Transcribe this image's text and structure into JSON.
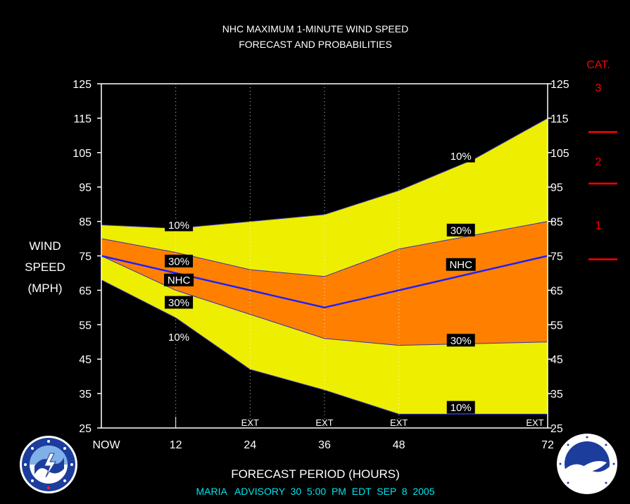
{
  "chart_data": {
    "type": "area",
    "title": [
      "NHC MAXIMUM 1-MINUTE WIND SPEED",
      "FORECAST AND PROBABILITIES"
    ],
    "xlabel": "FORECAST PERIOD (HOURS)",
    "ylabel": [
      "WIND",
      "SPEED",
      "(MPH)"
    ],
    "x_ticks": [
      {
        "x": 0,
        "label": "NOW"
      },
      {
        "x": 12,
        "label": "12"
      },
      {
        "x": 24,
        "label": "24"
      },
      {
        "x": 36,
        "label": "36"
      },
      {
        "x": 48,
        "label": "48"
      },
      {
        "x": 72,
        "label": "72"
      }
    ],
    "x_range": [
      0,
      72
    ],
    "ylim": [
      25,
      125
    ],
    "y_ticks": [
      25,
      35,
      45,
      55,
      65,
      75,
      85,
      95,
      105,
      115,
      125
    ],
    "x": [
      0,
      12,
      24,
      36,
      48,
      60,
      72
    ],
    "bands": {
      "upper_10": [
        84,
        83,
        85,
        87,
        94,
        103,
        115
      ],
      "upper_30": [
        80,
        76,
        71,
        69,
        77,
        81,
        85
      ],
      "nhc": [
        75,
        70,
        65,
        60,
        65,
        70,
        75
      ],
      "lower_30": [
        75,
        65,
        58,
        51,
        49,
        49.5,
        50
      ],
      "lower_10": [
        68,
        57,
        42,
        36,
        29,
        29,
        29
      ]
    },
    "colors": {
      "outer_band": "#eeee00",
      "inner_band": "#ff8000",
      "nhc_line": "#2020ff",
      "category_marks": "#ff0000",
      "footer_text": "#00e5ee"
    },
    "band_labels": [
      {
        "text": "10%",
        "x": 12.5,
        "y": 84
      },
      {
        "text": "30%",
        "x": 12.5,
        "y": 73.5
      },
      {
        "text": "NHC",
        "x": 12.5,
        "y": 68
      },
      {
        "text": "30%",
        "x": 12.5,
        "y": 61.5
      },
      {
        "text": "10%",
        "x": 12.5,
        "y": 51.5
      },
      {
        "text": "10%",
        "x": 58,
        "y": 104
      },
      {
        "text": "30%",
        "x": 58,
        "y": 82.5
      },
      {
        "text": "NHC",
        "x": 58,
        "y": 72.5
      },
      {
        "text": "30%",
        "x": 58,
        "y": 50.5
      },
      {
        "text": "10%",
        "x": 58,
        "y": 31
      }
    ],
    "ext_markers": [
      {
        "x": 24,
        "label": "EXT"
      },
      {
        "x": 36,
        "label": "EXT"
      },
      {
        "x": 48,
        "label": "EXT"
      },
      {
        "x": 72,
        "label": "EXT"
      }
    ],
    "category_scale": {
      "heading": "CAT.",
      "labels": [
        {
          "text": "3",
          "y": 124
        },
        {
          "text": "2",
          "y": 102.5
        },
        {
          "text": "1",
          "y": 84
        }
      ],
      "thresholds": [
        111,
        96,
        74
      ]
    },
    "grid": {
      "vertical_dotted_at": [
        12,
        24,
        36,
        48
      ],
      "horizontal": false
    },
    "footer": "MARIA   ADVISORY  30  5:00  PM  EDT  SEP  8  2005"
  }
}
